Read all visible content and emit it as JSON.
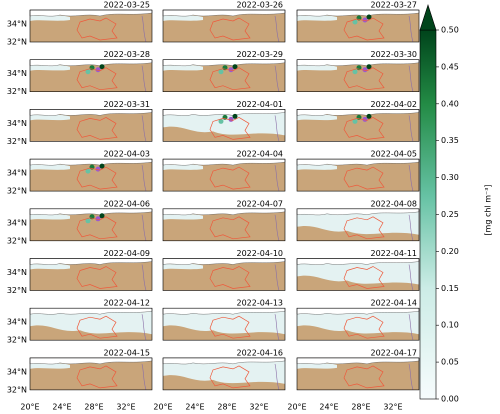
{
  "panels": [
    {
      "date": "2022-03-25"
    },
    {
      "date": "2022-03-26"
    },
    {
      "date": "2022-03-27"
    },
    {
      "date": "2022-03-28"
    },
    {
      "date": "2022-03-29"
    },
    {
      "date": "2022-03-30"
    },
    {
      "date": "2022-03-31"
    },
    {
      "date": "2022-04-01"
    },
    {
      "date": "2022-04-02"
    },
    {
      "date": "2022-04-03"
    },
    {
      "date": "2022-04-04"
    },
    {
      "date": "2022-04-05"
    },
    {
      "date": "2022-04-06"
    },
    {
      "date": "2022-04-07"
    },
    {
      "date": "2022-04-08"
    },
    {
      "date": "2022-04-09"
    },
    {
      "date": "2022-04-10"
    },
    {
      "date": "2022-04-11"
    },
    {
      "date": "2022-04-12"
    },
    {
      "date": "2022-04-13"
    },
    {
      "date": "2022-04-14"
    },
    {
      "date": "2022-04-15"
    },
    {
      "date": "2022-04-16"
    },
    {
      "date": "2022-04-17"
    }
  ],
  "lat_labels": [
    "34°N",
    "32°N"
  ],
  "lon_labels": [
    "20°E",
    "24°E",
    "28°E",
    "32°E"
  ],
  "colorbar": {
    "label": "[mg chl m⁻³]",
    "ylim": [
      0,
      0.5
    ],
    "ticks": [
      {
        "value": 0,
        "label": "0.00"
      },
      0.05,
      {
        "value": 0.1,
        "label": "0.10"
      },
      0.15,
      {
        "value": 0.2,
        "label": "0.20"
      },
      0.25,
      {
        "value": 0.3,
        "label": "0.30"
      },
      0.35,
      {
        "value": 0.4,
        "label": "0.40"
      },
      0.45,
      {
        "value": 0.5,
        "label": "0.50"
      }
    ]
  }
}
